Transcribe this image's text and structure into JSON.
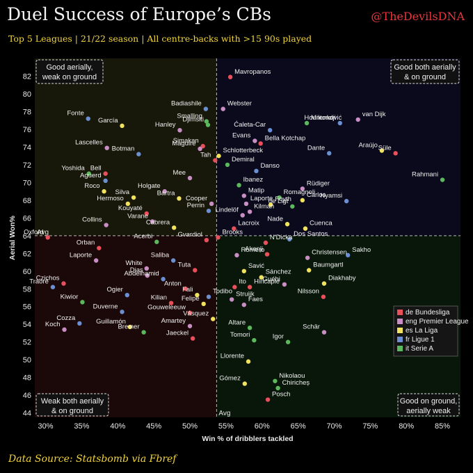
{
  "header": {
    "title": "Duel Success of Europe’s CBs",
    "handle": "@TheDevilsDNA",
    "subtitle": "Top 5 Leagues | 21/22 season | All centre-backs with >15 90s played"
  },
  "footer": {
    "source": "Data Source: Statsbomb via Fbref"
  },
  "colors": {
    "de Bundesliga": "#e8505b",
    "eng Premier League": "#c98fc4",
    "es La Liga": "#f2e35e",
    "fr Ligue 1": "#6b8fd1",
    "it Serie A": "#5cb85c"
  },
  "chart_data": {
    "type": "scatter",
    "xlabel": "Win % of dribblers tackled",
    "ylabel": "Aerial Won%",
    "xlim": [
      28.5,
      87.5
    ],
    "ylim": [
      43.5,
      84
    ],
    "xticks": [
      30,
      35,
      40,
      45,
      50,
      55,
      60,
      65,
      70,
      75,
      80,
      85
    ],
    "xtick_labels": [
      "30%",
      "35%",
      "40%",
      "45%",
      "50%",
      "55%",
      "60%",
      "65%",
      "70%",
      "75%",
      "80%",
      "85%"
    ],
    "yticks": [
      44,
      46,
      48,
      50,
      52,
      54,
      56,
      58,
      60,
      62,
      64,
      66,
      68,
      70,
      72,
      74,
      76,
      78,
      80,
      82
    ],
    "avg": {
      "x": 53.7,
      "y": 64.0,
      "label": "Avg"
    },
    "quadrants": {
      "top_left": [
        "Good aerially,",
        "weak on ground"
      ],
      "top_right": [
        "Good both aerially",
        "& on ground"
      ],
      "bottom_left": [
        "Weak both aerially",
        "& on ground"
      ],
      "bottom_right": [
        "Good on ground,",
        "aerially weak"
      ]
    },
    "legend": {
      "position": "right",
      "entries": [
        "de Bundesliga",
        "eng Premier League",
        "es La Liga",
        "fr Ligue 1",
        "it Serie A"
      ]
    },
    "points": [
      {
        "name": "Mavropanos",
        "x": 55.6,
        "y": 81.9,
        "league": "de Bundesliga"
      },
      {
        "name": "Badiashile",
        "x": 52.2,
        "y": 78.3,
        "league": "fr Ligue 1"
      },
      {
        "name": "Webster",
        "x": 54.6,
        "y": 78.3,
        "league": "eng Premier League"
      },
      {
        "name": "Milenković",
        "x": 66.2,
        "y": 76.7,
        "league": "it Serie A"
      },
      {
        "name": "van Dijk",
        "x": 73.3,
        "y": 77.1,
        "league": "eng Premier League"
      },
      {
        "name": "Hountondji",
        "x": 70.8,
        "y": 76.7,
        "league": "fr Ligue 1"
      },
      {
        "name": "Fonte",
        "x": 35.9,
        "y": 77.2,
        "league": "fr Ligue 1"
      },
      {
        "name": "Smalling",
        "x": 52.3,
        "y": 76.9,
        "league": "it Serie A"
      },
      {
        "name": "García",
        "x": 40.6,
        "y": 76.4,
        "league": "es La Liga"
      },
      {
        "name": "Hanley",
        "x": 48.6,
        "y": 75.9,
        "league": "eng Premier League"
      },
      {
        "name": "Djimsiti",
        "x": 52.5,
        "y": 76.5,
        "league": "it Serie A"
      },
      {
        "name": "Ćaleta-Car",
        "x": 61.1,
        "y": 75.9,
        "league": "fr Ligue 1"
      },
      {
        "name": "Simakan",
        "x": 51.8,
        "y": 74.1,
        "league": "de Bundesliga"
      },
      {
        "name": "Evans",
        "x": 59.0,
        "y": 74.7,
        "league": "eng Premier League"
      },
      {
        "name": "Bella Kotchap",
        "x": 59.8,
        "y": 74.4,
        "league": "de Bundesliga"
      },
      {
        "name": "Lascelles",
        "x": 38.5,
        "y": 73.9,
        "league": "eng Premier League"
      },
      {
        "name": "Maguire",
        "x": 51.4,
        "y": 73.8,
        "league": "eng Premier League"
      },
      {
        "name": "Araújo",
        "x": 76.6,
        "y": 73.6,
        "league": "es La Liga"
      },
      {
        "name": "Süle",
        "x": 78.5,
        "y": 73.3,
        "league": "de Bundesliga"
      },
      {
        "name": "Schlotterbeck",
        "x": 54.0,
        "y": 73.0,
        "league": "es La Liga"
      },
      {
        "name": "Dante",
        "x": 69.3,
        "y": 73.3,
        "league": "fr Ligue 1"
      },
      {
        "name": "Botman",
        "x": 42.9,
        "y": 73.2,
        "league": "fr Ligue 1"
      },
      {
        "name": "Tah",
        "x": 53.5,
        "y": 72.5,
        "league": "de Bundesliga"
      },
      {
        "name": "Demiral",
        "x": 55.2,
        "y": 72.0,
        "league": "it Serie A"
      },
      {
        "name": "Danso",
        "x": 59.2,
        "y": 71.3,
        "league": "fr Ligue 1"
      },
      {
        "name": "Yoshida",
        "x": 36.0,
        "y": 71.0,
        "league": "it Serie A"
      },
      {
        "name": "Bell",
        "x": 38.3,
        "y": 71.0,
        "league": "de Bundesliga"
      },
      {
        "name": "Aguerd",
        "x": 38.3,
        "y": 70.2,
        "league": "fr Ligue 1"
      },
      {
        "name": "Mee",
        "x": 50.0,
        "y": 70.5,
        "league": "eng Premier League"
      },
      {
        "name": "Rahmani",
        "x": 85.0,
        "y": 70.3,
        "league": "it Serie A"
      },
      {
        "name": "Ibanez",
        "x": 56.8,
        "y": 69.7,
        "league": "it Serie A"
      },
      {
        "name": "Rüdiger",
        "x": 65.6,
        "y": 69.3,
        "league": "eng Premier League"
      },
      {
        "name": "Holgate",
        "x": 46.5,
        "y": 69.0,
        "league": "eng Premier League"
      },
      {
        "name": "Roco",
        "x": 38.1,
        "y": 69.0,
        "league": "es La Liga"
      },
      {
        "name": "Bartra",
        "x": 48.5,
        "y": 68.2,
        "league": "es La Liga"
      },
      {
        "name": "Silva",
        "x": 42.2,
        "y": 68.3,
        "league": "es La Liga"
      },
      {
        "name": "Matip",
        "x": 57.5,
        "y": 68.5,
        "league": "eng Premier League"
      },
      {
        "name": "Romagnoli",
        "x": 62.4,
        "y": 68.3,
        "league": "it Serie A"
      },
      {
        "name": "Carlos",
        "x": 65.6,
        "y": 68.0,
        "league": "es La Liga"
      },
      {
        "name": "Hermoso",
        "x": 41.4,
        "y": 67.6,
        "league": "es La Liga"
      },
      {
        "name": "Cooper",
        "x": 53.0,
        "y": 67.6,
        "league": "eng Premier League"
      },
      {
        "name": "Laporte",
        "x": 57.8,
        "y": 67.6,
        "league": "eng Premier League"
      },
      {
        "name": "Foyth",
        "x": 61.2,
        "y": 67.5,
        "league": "es La Liga"
      },
      {
        "name": "de Ligt",
        "x": 64.2,
        "y": 67.3,
        "league": "it Serie A"
      },
      {
        "name": "Nyamsi",
        "x": 71.7,
        "y": 67.9,
        "league": "fr Ligue 1"
      },
      {
        "name": "Perrin",
        "x": 52.6,
        "y": 66.8,
        "league": "fr Ligue 1"
      },
      {
        "name": "Kilman",
        "x": 58.3,
        "y": 66.7,
        "league": "eng Premier League"
      },
      {
        "name": "Kouyaté",
        "x": 44.0,
        "y": 66.5,
        "league": "de Bundesliga"
      },
      {
        "name": "Lindelöf",
        "x": 57.3,
        "y": 66.3,
        "league": "eng Premier League"
      },
      {
        "name": "Varane",
        "x": 44.8,
        "y": 65.6,
        "league": "eng Premier League"
      },
      {
        "name": "Nade",
        "x": 63.5,
        "y": 65.3,
        "league": "es La Liga"
      },
      {
        "name": "Collins",
        "x": 38.4,
        "y": 65.2,
        "league": "eng Premier League"
      },
      {
        "name": "Cabrera",
        "x": 47.8,
        "y": 64.9,
        "league": "es La Liga"
      },
      {
        "name": "Lacroix",
        "x": 56.1,
        "y": 64.8,
        "league": "de Bundesliga"
      },
      {
        "name": "Cuenca",
        "x": 66.0,
        "y": 64.8,
        "league": "es La Liga"
      },
      {
        "name": "Brooks",
        "x": 53.9,
        "y": 63.8,
        "league": "de Bundesliga"
      },
      {
        "name": "Dos Santos",
        "x": 63.8,
        "y": 63.6,
        "league": "fr Ligue 1"
      },
      {
        "name": "Oxford",
        "x": 30.3,
        "y": 63.8,
        "league": "de Bundesliga"
      },
      {
        "name": "Acerbi",
        "x": 45.4,
        "y": 63.3,
        "league": "it Serie A"
      },
      {
        "name": "Gvardiol",
        "x": 52.3,
        "y": 63.5,
        "league": "de Bundesliga"
      },
      {
        "name": "N'Dicka",
        "x": 60.5,
        "y": 63.2,
        "league": "de Bundesliga"
      },
      {
        "name": "Orban",
        "x": 37.4,
        "y": 62.6,
        "league": "de Bundesliga"
      },
      {
        "name": "Romero",
        "x": 56.5,
        "y": 61.8,
        "league": "eng Premier League"
      },
      {
        "name": "Akanji",
        "x": 60.7,
        "y": 61.9,
        "league": "de Bundesliga"
      },
      {
        "name": "Sakho",
        "x": 71.9,
        "y": 61.8,
        "league": "fr Ligue 1"
      },
      {
        "name": "Christensen",
        "x": 66.3,
        "y": 61.5,
        "league": "eng Premier League"
      },
      {
        "name": "Laporte",
        "x": 37.0,
        "y": 61.2,
        "league": "eng Premier League"
      },
      {
        "name": "Saliba",
        "x": 47.7,
        "y": 61.2,
        "league": "fr Ligue 1"
      },
      {
        "name": "White",
        "x": 44.0,
        "y": 60.3,
        "league": "eng Premier League"
      },
      {
        "name": "Tuta",
        "x": 50.7,
        "y": 60.1,
        "league": "de Bundesliga"
      },
      {
        "name": "Savić",
        "x": 57.5,
        "y": 60.0,
        "league": "es La Liga"
      },
      {
        "name": "Baumgartl",
        "x": 66.5,
        "y": 60.1,
        "league": "es La Liga"
      },
      {
        "name": "Dias",
        "x": 44.1,
        "y": 59.5,
        "league": "eng Premier League"
      },
      {
        "name": "Sánchez",
        "x": 59.9,
        "y": 59.3,
        "league": "es La Liga"
      },
      {
        "name": "Abdelhamid",
        "x": 46.3,
        "y": 59.1,
        "league": "fr Ligue 1"
      },
      {
        "name": "Czichos",
        "x": 32.5,
        "y": 58.6,
        "league": "de Bundesliga"
      },
      {
        "name": "Diakhaby",
        "x": 68.6,
        "y": 58.6,
        "league": "es La Liga"
      },
      {
        "name": "Guéhi",
        "x": 63.1,
        "y": 58.5,
        "league": "eng Premier League"
      },
      {
        "name": "Ito",
        "x": 56.2,
        "y": 58.2,
        "league": "de Bundesliga"
      },
      {
        "name": "Hincapié",
        "x": 58.3,
        "y": 58.2,
        "league": "de Bundesliga"
      },
      {
        "name": "Traoré",
        "x": 31.0,
        "y": 58.2,
        "league": "fr Ligue 1"
      },
      {
        "name": "Anton",
        "x": 49.4,
        "y": 58.0,
        "league": "de Bundesliga"
      },
      {
        "name": "Ogier",
        "x": 41.3,
        "y": 57.3,
        "league": "fr Ligue 1"
      },
      {
        "name": "Fali",
        "x": 51.0,
        "y": 57.3,
        "league": "es La Liga"
      },
      {
        "name": "Todibo",
        "x": 52.6,
        "y": 57.1,
        "league": "fr Ligue 1"
      },
      {
        "name": "Nilsson",
        "x": 68.5,
        "y": 57.1,
        "league": "de Bundesliga"
      },
      {
        "name": "Struijk",
        "x": 55.8,
        "y": 56.8,
        "league": "eng Premier League"
      },
      {
        "name": "Kilian",
        "x": 47.4,
        "y": 56.4,
        "league": "de Bundesliga"
      },
      {
        "name": "Felipe",
        "x": 51.9,
        "y": 56.3,
        "league": "es La Liga"
      },
      {
        "name": "Faes",
        "x": 57.5,
        "y": 56.2,
        "league": "eng Premier League"
      },
      {
        "name": "Kiwior",
        "x": 35.1,
        "y": 56.5,
        "league": "it Serie A"
      },
      {
        "name": "Duverne",
        "x": 40.6,
        "y": 55.4,
        "league": "fr Ligue 1"
      },
      {
        "name": "Gouweleeuw",
        "x": 50.0,
        "y": 55.3,
        "league": "de Bundesliga"
      },
      {
        "name": "Vásquez",
        "x": 53.2,
        "y": 54.6,
        "league": "es La Liga"
      },
      {
        "name": "Cozza",
        "x": 34.7,
        "y": 54.1,
        "league": "fr Ligue 1"
      },
      {
        "name": "Guillamón",
        "x": 41.7,
        "y": 53.7,
        "league": "es La Liga"
      },
      {
        "name": "Amartey",
        "x": 50.0,
        "y": 53.8,
        "league": "eng Premier League"
      },
      {
        "name": "Altare",
        "x": 58.3,
        "y": 53.6,
        "league": "it Serie A"
      },
      {
        "name": "Koch",
        "x": 32.6,
        "y": 53.4,
        "league": "eng Premier League"
      },
      {
        "name": "Schär",
        "x": 68.6,
        "y": 53.1,
        "league": "eng Premier League"
      },
      {
        "name": "Bremer",
        "x": 43.6,
        "y": 53.1,
        "league": "it Serie A"
      },
      {
        "name": "Jaeckel",
        "x": 50.4,
        "y": 52.4,
        "league": "de Bundesliga"
      },
      {
        "name": "Tomori",
        "x": 58.9,
        "y": 52.2,
        "league": "it Serie A"
      },
      {
        "name": "Igor",
        "x": 63.6,
        "y": 52.0,
        "league": "it Serie A"
      },
      {
        "name": "Llorente",
        "x": 58.1,
        "y": 49.8,
        "league": "es La Liga"
      },
      {
        "name": "Nikolaou",
        "x": 61.8,
        "y": 47.6,
        "league": "it Serie A"
      },
      {
        "name": "Gómez",
        "x": 57.6,
        "y": 47.3,
        "league": "es La Liga"
      },
      {
        "name": "Chiricheș",
        "x": 62.2,
        "y": 46.8,
        "league": "it Serie A"
      },
      {
        "name": "Posch",
        "x": 60.8,
        "y": 45.5,
        "league": "de Bundesliga"
      }
    ]
  }
}
